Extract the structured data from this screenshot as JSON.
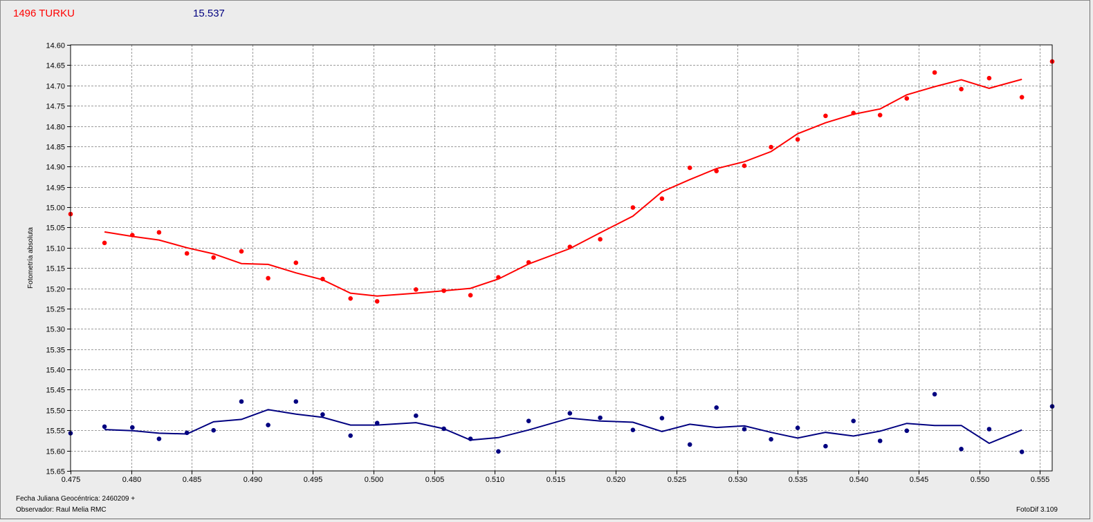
{
  "header": {
    "object_name": "1496 TURKU",
    "comparison_value": "15.537"
  },
  "footer": {
    "julian_date": "Fecha Juliana Geocéntrica: 2460209 +",
    "observer": "Observador: Raul Melia RMC",
    "software": "FotoDif 3.109"
  },
  "colors": {
    "series_red": "#ff0000",
    "series_blue": "#000080",
    "grid": "#9a9a9a",
    "plot_bg": "#ffffff"
  },
  "chart_data": {
    "type": "scatter",
    "title": "",
    "xlabel": "",
    "ylabel": "Fotometría absoluta",
    "xlim": [
      0.475,
      0.556
    ],
    "ylim": [
      14.6,
      15.65
    ],
    "y_inverted": true,
    "grid": true,
    "x_ticks": [
      "0.475",
      "0.480",
      "0.485",
      "0.490",
      "0.495",
      "0.500",
      "0.505",
      "0.510",
      "0.515",
      "0.520",
      "0.525",
      "0.530",
      "0.535",
      "0.540",
      "0.545",
      "0.550",
      "0.555"
    ],
    "y_ticks": [
      "14.60",
      "14.65",
      "14.70",
      "14.75",
      "14.80",
      "14.85",
      "14.90",
      "14.95",
      "15.00",
      "15.05",
      "15.10",
      "15.15",
      "15.20",
      "15.25",
      "15.30",
      "15.35",
      "15.40",
      "15.45",
      "15.50",
      "15.55",
      "15.60",
      "15.65"
    ],
    "series": [
      {
        "color": "#ff0000",
        "points": [
          [
            0.475,
            15.017
          ],
          [
            0.4778,
            15.088
          ],
          [
            0.4801,
            15.069
          ],
          [
            0.4823,
            15.062
          ],
          [
            0.4846,
            15.114
          ],
          [
            0.4868,
            15.124
          ],
          [
            0.4891,
            15.109
          ],
          [
            0.4913,
            15.175
          ],
          [
            0.4936,
            15.137
          ],
          [
            0.4958,
            15.177
          ],
          [
            0.4981,
            15.225
          ],
          [
            0.5003,
            15.232
          ],
          [
            0.5035,
            15.203
          ],
          [
            0.5058,
            15.206
          ],
          [
            0.508,
            15.217
          ],
          [
            0.5103,
            15.173
          ],
          [
            0.5128,
            15.136
          ],
          [
            0.5162,
            15.098
          ],
          [
            0.5187,
            15.079
          ],
          [
            0.5214,
            15.001
          ],
          [
            0.5238,
            14.979
          ],
          [
            0.5261,
            14.903
          ],
          [
            0.5283,
            14.911
          ],
          [
            0.5306,
            14.898
          ],
          [
            0.5328,
            14.852
          ],
          [
            0.535,
            14.833
          ],
          [
            0.5373,
            14.775
          ],
          [
            0.5396,
            14.768
          ],
          [
            0.5418,
            14.773
          ],
          [
            0.544,
            14.732
          ],
          [
            0.5463,
            14.668
          ],
          [
            0.5485,
            14.709
          ],
          [
            0.5508,
            14.682
          ],
          [
            0.5535,
            14.729
          ],
          [
            0.556,
            14.641
          ]
        ],
        "trend": [
          [
            0.4778,
            15.061
          ],
          [
            0.4801,
            15.072
          ],
          [
            0.4823,
            15.081
          ],
          [
            0.4846,
            15.1
          ],
          [
            0.4868,
            15.115
          ],
          [
            0.4891,
            15.139
          ],
          [
            0.4913,
            15.141
          ],
          [
            0.4936,
            15.162
          ],
          [
            0.4958,
            15.179
          ],
          [
            0.4981,
            15.212
          ],
          [
            0.5003,
            15.219
          ],
          [
            0.5035,
            15.212
          ],
          [
            0.5058,
            15.206
          ],
          [
            0.508,
            15.2
          ],
          [
            0.5103,
            15.177
          ],
          [
            0.5128,
            15.14
          ],
          [
            0.5162,
            15.102
          ],
          [
            0.5187,
            15.063
          ],
          [
            0.5214,
            15.022
          ],
          [
            0.5238,
            14.962
          ],
          [
            0.5261,
            14.932
          ],
          [
            0.5283,
            14.905
          ],
          [
            0.5306,
            14.888
          ],
          [
            0.5328,
            14.863
          ],
          [
            0.535,
            14.819
          ],
          [
            0.5373,
            14.792
          ],
          [
            0.5396,
            14.771
          ],
          [
            0.5418,
            14.758
          ],
          [
            0.544,
            14.723
          ],
          [
            0.5463,
            14.703
          ],
          [
            0.5485,
            14.686
          ],
          [
            0.5508,
            14.707
          ],
          [
            0.5535,
            14.685
          ]
        ]
      },
      {
        "color": "#000080",
        "points": [
          [
            0.475,
            15.557
          ],
          [
            0.4778,
            15.541
          ],
          [
            0.4801,
            15.543
          ],
          [
            0.4823,
            15.571
          ],
          [
            0.4846,
            15.556
          ],
          [
            0.4868,
            15.55
          ],
          [
            0.4891,
            15.479
          ],
          [
            0.4913,
            15.537
          ],
          [
            0.4936,
            15.479
          ],
          [
            0.4958,
            15.511
          ],
          [
            0.4981,
            15.563
          ],
          [
            0.5003,
            15.532
          ],
          [
            0.5035,
            15.514
          ],
          [
            0.5058,
            15.546
          ],
          [
            0.508,
            15.571
          ],
          [
            0.5103,
            15.602
          ],
          [
            0.5128,
            15.527
          ],
          [
            0.5162,
            15.508
          ],
          [
            0.5187,
            15.519
          ],
          [
            0.5214,
            15.549
          ],
          [
            0.5238,
            15.52
          ],
          [
            0.5261,
            15.585
          ],
          [
            0.5283,
            15.494
          ],
          [
            0.5306,
            15.547
          ],
          [
            0.5328,
            15.572
          ],
          [
            0.535,
            15.544
          ],
          [
            0.5373,
            15.589
          ],
          [
            0.5396,
            15.527
          ],
          [
            0.5418,
            15.576
          ],
          [
            0.544,
            15.551
          ],
          [
            0.5463,
            15.461
          ],
          [
            0.5485,
            15.596
          ],
          [
            0.5508,
            15.547
          ],
          [
            0.5535,
            15.603
          ],
          [
            0.556,
            15.491
          ]
        ],
        "trend": [
          [
            0.4778,
            15.548
          ],
          [
            0.4801,
            15.551
          ],
          [
            0.4823,
            15.557
          ],
          [
            0.4846,
            15.559
          ],
          [
            0.4868,
            15.529
          ],
          [
            0.4891,
            15.523
          ],
          [
            0.4913,
            15.499
          ],
          [
            0.4936,
            15.51
          ],
          [
            0.4958,
            15.518
          ],
          [
            0.4981,
            15.537
          ],
          [
            0.5003,
            15.537
          ],
          [
            0.5035,
            15.531
          ],
          [
            0.5058,
            15.546
          ],
          [
            0.508,
            15.574
          ],
          [
            0.5103,
            15.568
          ],
          [
            0.5128,
            15.549
          ],
          [
            0.5162,
            15.52
          ],
          [
            0.5187,
            15.527
          ],
          [
            0.5214,
            15.53
          ],
          [
            0.5238,
            15.553
          ],
          [
            0.5261,
            15.535
          ],
          [
            0.5283,
            15.543
          ],
          [
            0.5306,
            15.539
          ],
          [
            0.5328,
            15.555
          ],
          [
            0.535,
            15.569
          ],
          [
            0.5373,
            15.555
          ],
          [
            0.5396,
            15.564
          ],
          [
            0.5418,
            15.552
          ],
          [
            0.544,
            15.533
          ],
          [
            0.5463,
            15.538
          ],
          [
            0.5485,
            15.538
          ],
          [
            0.5508,
            15.582
          ],
          [
            0.5535,
            15.549
          ]
        ]
      }
    ]
  }
}
